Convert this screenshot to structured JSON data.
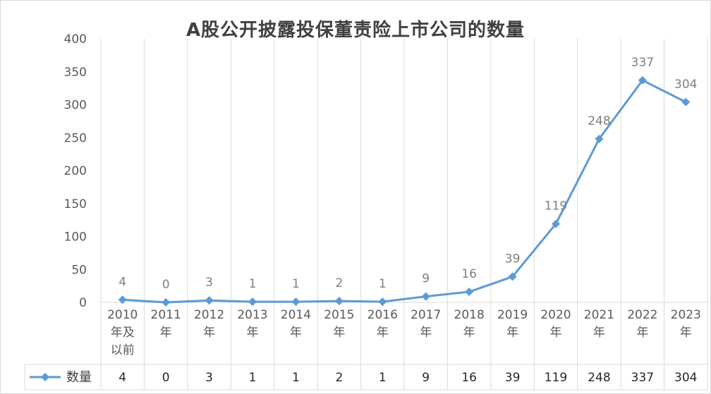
{
  "chart_data": {
    "type": "line",
    "title": "A股公开披露投保董责险上市公司的数量",
    "categories": [
      [
        "2010",
        "年及",
        "以前"
      ],
      [
        "2011",
        "年"
      ],
      [
        "2012",
        "年"
      ],
      [
        "2013",
        "年"
      ],
      [
        "2014",
        "年"
      ],
      [
        "2015",
        "年"
      ],
      [
        "2016",
        "年"
      ],
      [
        "2017",
        "年"
      ],
      [
        "2018",
        "年"
      ],
      [
        "2019",
        "年"
      ],
      [
        "2020",
        "年"
      ],
      [
        "2021",
        "年"
      ],
      [
        "2022",
        "年"
      ],
      [
        "2023",
        "年"
      ]
    ],
    "series": [
      {
        "name": "数量",
        "values": [
          4,
          0,
          3,
          1,
          1,
          2,
          1,
          9,
          16,
          39,
          119,
          248,
          337,
          304
        ],
        "color": "#5b9bd5"
      }
    ],
    "ylim": [
      0,
      400
    ],
    "yticks": [
      0,
      50,
      100,
      150,
      200,
      250,
      300,
      350,
      400
    ],
    "grid": "vertical",
    "data_table": true,
    "legend_placement": "data-table-left"
  }
}
